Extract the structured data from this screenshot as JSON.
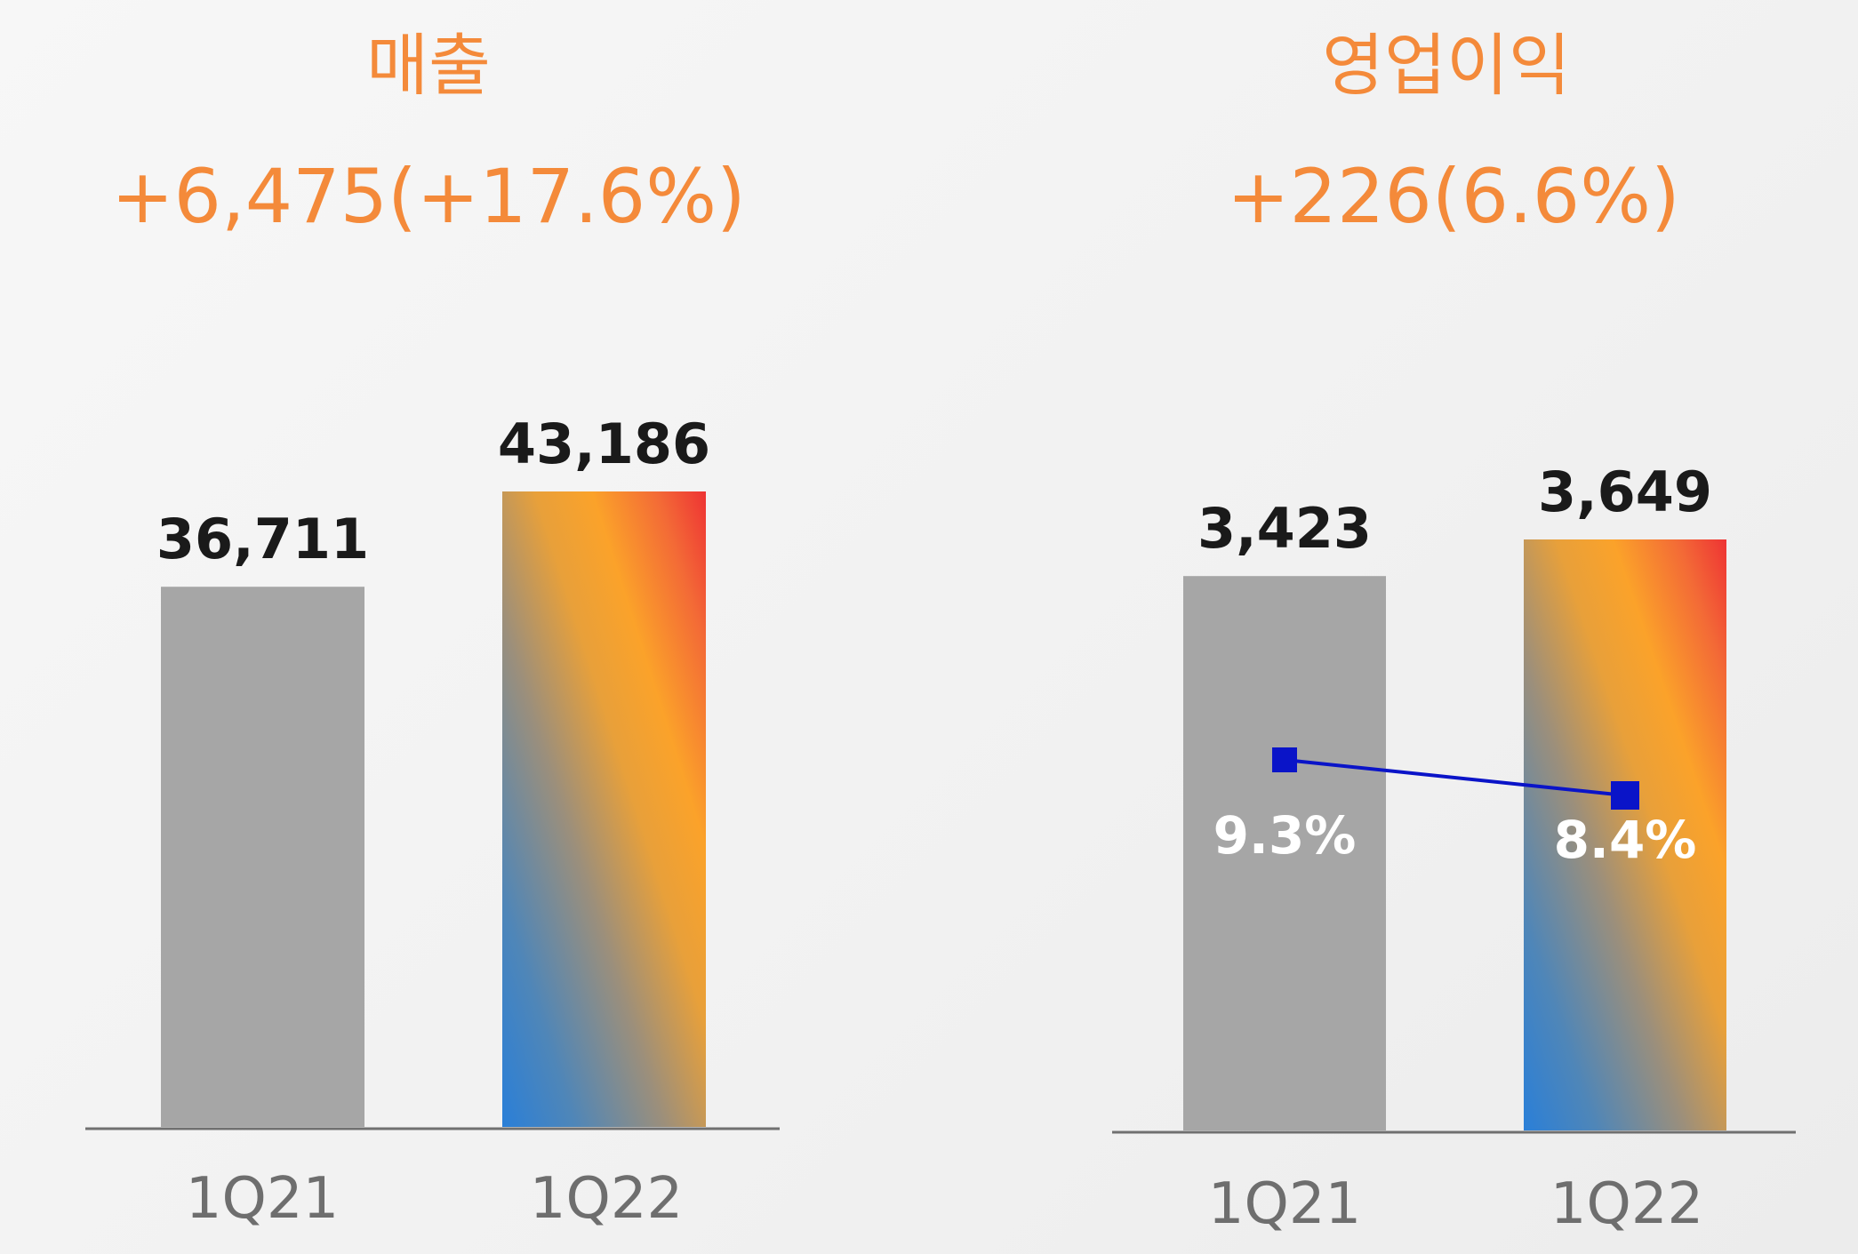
{
  "chart_data": [
    {
      "type": "bar",
      "title": "매출",
      "subtitle": "+6,475(+17.6%)",
      "categories": [
        "1Q21",
        "1Q22"
      ],
      "values": [
        36711,
        43186
      ],
      "value_labels": [
        "36,711",
        "43,186"
      ],
      "colors": [
        "#a6a6a6",
        "gradient: blue #2a7fd8 → orange #f9a02b → red #ee3434"
      ]
    },
    {
      "type": "bar",
      "title": "영업이익",
      "subtitle": "+226(6.6%)",
      "categories": [
        "1Q21",
        "1Q22"
      ],
      "values": [
        3423,
        3649
      ],
      "value_labels": [
        "3,423",
        "3,649"
      ],
      "colors": [
        "#a6a6a6",
        "gradient: blue #2a7fd8 → orange #f9a02b → red #ee3434"
      ],
      "line_series": {
        "values": [
          9.3,
          8.4
        ],
        "labels": [
          "9.3%",
          "8.4%"
        ],
        "color": "#0a14c8"
      }
    }
  ]
}
